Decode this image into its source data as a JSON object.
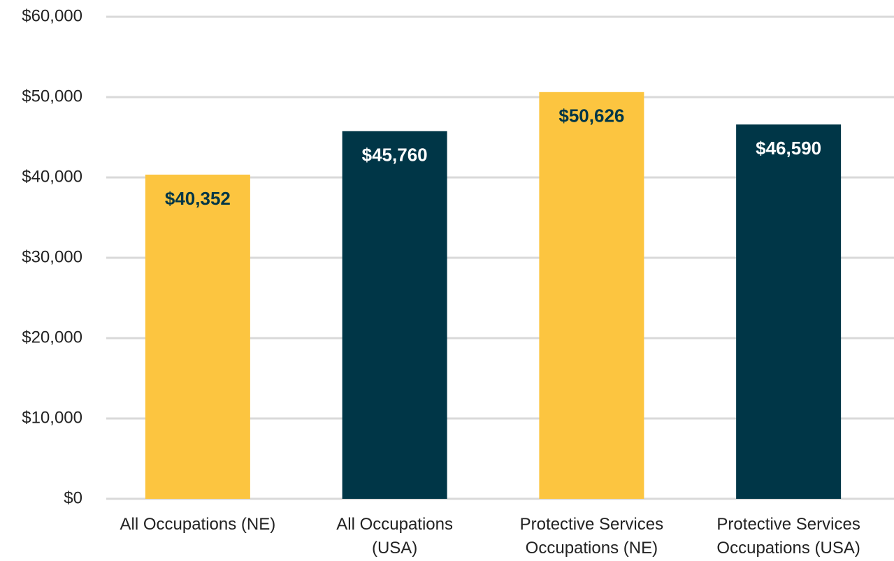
{
  "chart_data": {
    "type": "bar",
    "categories": [
      "All Occupations (NE)",
      "All Occupations\n(USA)",
      "Protective Services\nOccupations (NE)",
      "Protective Services\nOccupations (USA)"
    ],
    "values": [
      40352,
      45760,
      50626,
      46590
    ],
    "value_labels": [
      "$40,352",
      "$45,760",
      "$50,626",
      "$46,590"
    ],
    "colors": [
      "#fcc540",
      "#003647",
      "#fcc540",
      "#003647"
    ],
    "ylim": [
      0,
      60000
    ],
    "yticks": [
      {
        "value": 0,
        "label": "$0"
      },
      {
        "value": 10000,
        "label": "$10,000"
      },
      {
        "value": 20000,
        "label": "$20,000"
      },
      {
        "value": 30000,
        "label": "$30,000"
      },
      {
        "value": 40000,
        "label": "$40,000"
      },
      {
        "value": 50000,
        "label": "$50,000"
      },
      {
        "value": 60000,
        "label": "$60,000"
      }
    ],
    "grid": true
  }
}
